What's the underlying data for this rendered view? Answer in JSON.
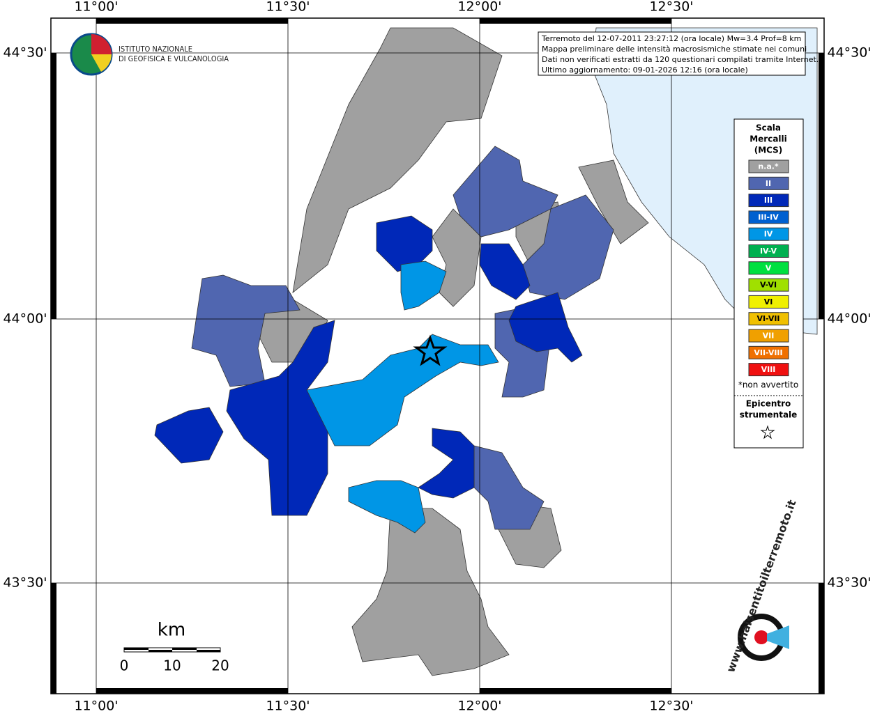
{
  "header": {
    "info_lines": [
      "Terremoto del 12-07-2011 23:27:12 (ora locale) Mw=3.4 Prof=8 km",
      "Mappa preliminare delle intensità macrosismiche stimate nei comuni",
      "Dati non verificati estratti da 120 questionari compilati tramite Internet.",
      "Ultimo aggiornamento: 09-01-2026 12:16 (ora locale)"
    ]
  },
  "axes": {
    "lon_labels": [
      "11°00'",
      "11°30'",
      "12°00'",
      "12°30'"
    ],
    "lat_labels": [
      "44°30'",
      "44°00'",
      "43°30'"
    ]
  },
  "logo": {
    "line1": "ISTITUTO NAZIONALE",
    "line2": "DI GEOFISICA E VULCANOLOGIA"
  },
  "legend": {
    "title": [
      "Scala",
      "Mercalli",
      "(MCS)"
    ],
    "items": [
      {
        "label": "n.a.*",
        "color": "#a0a0a0"
      },
      {
        "label": "II",
        "color": "#5066b0"
      },
      {
        "label": "III",
        "color": "#0028b8"
      },
      {
        "label": "III-IV",
        "color": "#0060d0"
      },
      {
        "label": "IV",
        "color": "#0096e6"
      },
      {
        "label": "IV-V",
        "color": "#00b050"
      },
      {
        "label": "V",
        "color": "#00e040"
      },
      {
        "label": "V-VI",
        "color": "#a0e000"
      },
      {
        "label": "VI",
        "color": "#f0f000"
      },
      {
        "label": "VI-VII",
        "color": "#f0c000"
      },
      {
        "label": "VII",
        "color": "#f0a000"
      },
      {
        "label": "VII-VIII",
        "color": "#f07000"
      },
      {
        "label": "VIII",
        "color": "#f01010"
      }
    ],
    "note": "*non avvertito",
    "epicenter": [
      "Epicentro",
      "strumentale"
    ]
  },
  "scale_bar": {
    "unit": "km",
    "labels": [
      "0",
      "10",
      "20"
    ]
  },
  "site_logo": {
    "text": "www.haisentitoilterremoto.it"
  }
}
